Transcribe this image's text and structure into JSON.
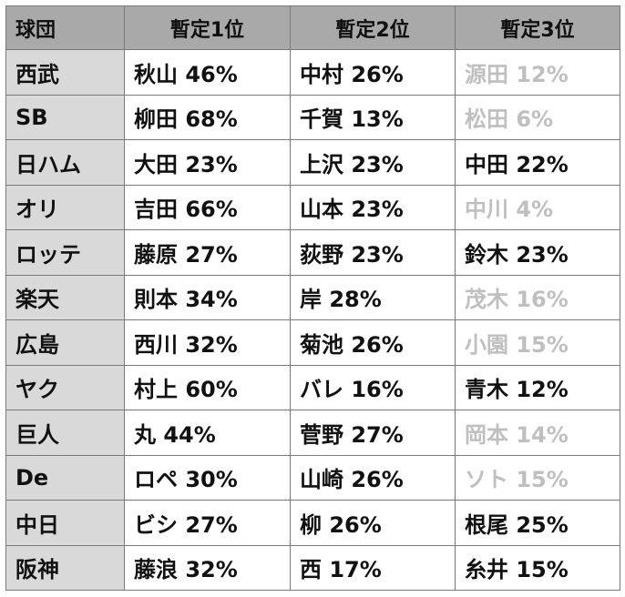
{
  "headers": [
    "球団",
    "暫定1位",
    "暫定2位",
    "暫定3位"
  ],
  "rows": [
    {
      "team": "西武",
      "c1": "秋山 46%",
      "c2": "中村 26%",
      "c3": "源田 12%",
      "c3_faded": true
    },
    {
      "team": "SB",
      "c1": "柳田 68%",
      "c2": "千賀 13%",
      "c3": "松田 6%",
      "c3_faded": true
    },
    {
      "team": "日ハム",
      "c1": "大田 23%",
      "c2": "上沢 23%",
      "c3": "中田 22%",
      "c3_faded": false
    },
    {
      "team": "オリ",
      "c1": "吉田 66%",
      "c2": "山本 23%",
      "c3": "中川 4%",
      "c3_faded": true
    },
    {
      "team": "ロッテ",
      "c1": "藤原 27%",
      "c2": "荻野 23%",
      "c3": "鈴木 23%",
      "c3_faded": false
    },
    {
      "team": "楽天",
      "c1": "則本 34%",
      "c2": "岸 28%",
      "c3": "茂木 16%",
      "c3_faded": true
    },
    {
      "team": "広島",
      "c1": "西川 32%",
      "c2": "菊池 26%",
      "c3": "小園 15%",
      "c3_faded": true
    },
    {
      "team": "ヤク",
      "c1": "村上 60%",
      "c2": "バレ 16%",
      "c3": "青木 12%",
      "c3_faded": false
    },
    {
      "team": "巨人",
      "c1": "丸 44%",
      "c2": "菅野 27%",
      "c3": "岡本 14%",
      "c3_faded": true
    },
    {
      "team": "De",
      "c1": "ロペ 30%",
      "c2": "山崎 26%",
      "c3": "ソト 15%",
      "c3_faded": true
    },
    {
      "team": "中日",
      "c1": "ビシ 27%",
      "c2": "柳 26%",
      "c3": "根尾 25%",
      "c3_faded": false
    },
    {
      "team": "阪神",
      "c1": "藤浪 32%",
      "c2": "西 17%",
      "c3": "糸井 15%",
      "c3_faded": false
    }
  ],
  "colors": {
    "header_bg": "#a9a9a9",
    "team_bg": "#d9d9d9",
    "faded_text": "#bfbfbf",
    "text": "#111111"
  }
}
